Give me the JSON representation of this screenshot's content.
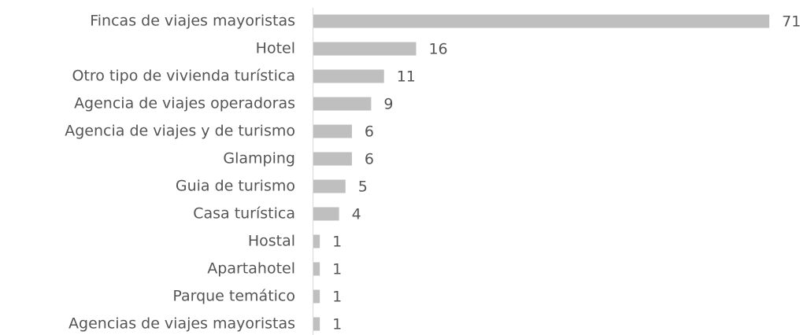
{
  "chart_data": {
    "type": "barh",
    "categories": [
      "Fincas de viajes mayoristas",
      "Hotel",
      "Otro tipo de vivienda turística",
      "Agencia de viajes operadoras",
      "Agencia de viajes y de turismo",
      "Glamping",
      "Guia de turismo",
      "Casa turística",
      "Hostal",
      "Apartahotel",
      "Parque temático",
      "Agencias de viajes mayoristas"
    ],
    "values": [
      71,
      16,
      11,
      9,
      6,
      6,
      5,
      4,
      1,
      1,
      1,
      1
    ],
    "color": "#bfbfbf"
  }
}
